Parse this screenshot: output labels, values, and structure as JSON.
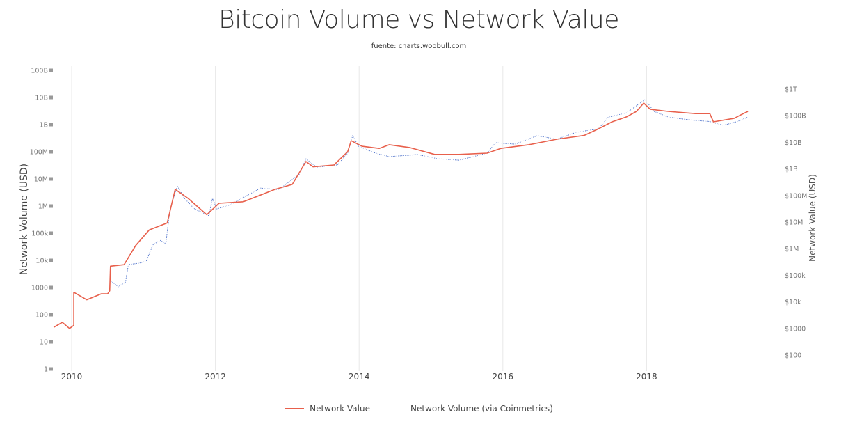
{
  "chart_data": {
    "type": "line",
    "title": "Bitcoin Volume vs Network Value",
    "subtitle": "fuente: charts.woobull.com",
    "xlabel": "",
    "ylabel_left": "Network Volume (USD)",
    "ylabel_right": "Network Value (USD)",
    "x_ticks": [
      "2010",
      "2012",
      "2014",
      "2016",
      "2018"
    ],
    "x_tick_values": [
      2010,
      2012,
      2014,
      2016,
      2018
    ],
    "xlim": [
      2009.75,
      2019.5
    ],
    "y_left": {
      "scale": "log",
      "range": [
        1,
        100000000000
      ],
      "ticks": [
        "1",
        "10",
        "100",
        "1000",
        "10k",
        "100k",
        "1M",
        "10M",
        "100M",
        "1B",
        "10B",
        "100B"
      ],
      "tick_values": [
        1,
        10,
        100,
        1000,
        10000,
        100000,
        1000000,
        10000000,
        100000000,
        1000000000,
        10000000000,
        100000000000
      ]
    },
    "y_right": {
      "scale": "log",
      "range": [
        100,
        1000000000000
      ],
      "ticks": [
        "$100",
        "$1000",
        "$10k",
        "$100k",
        "$1M",
        "$10M",
        "$100M",
        "$1B",
        "$10B",
        "$100B",
        "$1T"
      ],
      "tick_values": [
        100,
        1000,
        10000,
        100000,
        1000000,
        10000000,
        100000000,
        1000000000,
        10000000000,
        100000000000,
        1000000000000
      ]
    },
    "grid": "vertical",
    "legend_position": "bottom-center",
    "series": [
      {
        "name": "Network Value",
        "axis": "right",
        "color": "#e8604c",
        "style": "solid",
        "points": [
          [
            2009.75,
            1100
          ],
          [
            2009.87,
            1700
          ],
          [
            2009.97,
            1000
          ],
          [
            2010.03,
            1300
          ],
          [
            2010.03,
            23000
          ],
          [
            2010.21,
            12000
          ],
          [
            2010.41,
            20000
          ],
          [
            2010.5,
            20000
          ],
          [
            2010.53,
            26000
          ],
          [
            2010.54,
            220000
          ],
          [
            2010.73,
            250000
          ],
          [
            2010.89,
            1300000
          ],
          [
            2011.08,
            5100000
          ],
          [
            2011.33,
            9300000
          ],
          [
            2011.44,
            170000000
          ],
          [
            2011.62,
            78000000
          ],
          [
            2011.88,
            19000000
          ],
          [
            2012.05,
            51000000
          ],
          [
            2012.39,
            58000000
          ],
          [
            2012.83,
            170000000
          ],
          [
            2013.07,
            260000000
          ],
          [
            2013.26,
            1900000000
          ],
          [
            2013.36,
            1200000000
          ],
          [
            2013.65,
            1400000000
          ],
          [
            2013.84,
            4400000000
          ],
          [
            2013.89,
            11500000000
          ],
          [
            2014.04,
            7100000000
          ],
          [
            2014.28,
            5900000000
          ],
          [
            2014.42,
            8100000000
          ],
          [
            2014.71,
            6300000000
          ],
          [
            2015.05,
            3500000000
          ],
          [
            2015.39,
            3500000000
          ],
          [
            2015.78,
            3900000000
          ],
          [
            2015.97,
            5900000000
          ],
          [
            2016.36,
            8100000000
          ],
          [
            2016.75,
            13000000000
          ],
          [
            2017.13,
            18000000000
          ],
          [
            2017.33,
            32000000000
          ],
          [
            2017.52,
            59000000000
          ],
          [
            2017.72,
            90000000000
          ],
          [
            2017.86,
            145000000000
          ],
          [
            2017.96,
            300000000000
          ],
          [
            2018.05,
            175000000000
          ],
          [
            2018.3,
            145000000000
          ],
          [
            2018.68,
            120000000000
          ],
          [
            2018.88,
            120000000000
          ],
          [
            2018.93,
            59000000000
          ],
          [
            2019.22,
            80000000000
          ],
          [
            2019.31,
            107000000000
          ],
          [
            2019.41,
            145000000000
          ]
        ]
      },
      {
        "name": "Network Volume (via Coinmetrics)",
        "axis": "left",
        "color": "#4a6fc9",
        "style": "dotted",
        "points": [
          [
            2010.53,
            1900
          ],
          [
            2010.65,
            1070
          ],
          [
            2010.75,
            1600
          ],
          [
            2010.79,
            7000
          ],
          [
            2010.94,
            7900
          ],
          [
            2011.04,
            9400
          ],
          [
            2011.13,
            37000
          ],
          [
            2011.23,
            55000
          ],
          [
            2011.31,
            41000
          ],
          [
            2011.37,
            790000
          ],
          [
            2011.47,
            5500000
          ],
          [
            2011.57,
            1900000
          ],
          [
            2011.71,
            790000
          ],
          [
            2011.91,
            440000
          ],
          [
            2011.96,
            1900000
          ],
          [
            2012.02,
            790000
          ],
          [
            2012.2,
            1100000
          ],
          [
            2012.63,
            4600000
          ],
          [
            2012.88,
            4000000
          ],
          [
            2013.17,
            15000000
          ],
          [
            2013.26,
            55000000
          ],
          [
            2013.41,
            27000000
          ],
          [
            2013.7,
            33000000
          ],
          [
            2013.84,
            89000000
          ],
          [
            2013.91,
            390000000
          ],
          [
            2013.99,
            160000000
          ],
          [
            2014.23,
            89000000
          ],
          [
            2014.42,
            66000000
          ],
          [
            2014.81,
            79000000
          ],
          [
            2015.1,
            55000000
          ],
          [
            2015.39,
            49000000
          ],
          [
            2015.78,
            89000000
          ],
          [
            2015.9,
            215000000
          ],
          [
            2016.17,
            190000000
          ],
          [
            2016.48,
            390000000
          ],
          [
            2016.75,
            290000000
          ],
          [
            2017.02,
            520000000
          ],
          [
            2017.33,
            700000000
          ],
          [
            2017.47,
            1900000000
          ],
          [
            2017.72,
            2700000000
          ],
          [
            2017.98,
            8400000000
          ],
          [
            2018.1,
            3100000000
          ],
          [
            2018.3,
            1900000000
          ],
          [
            2018.59,
            1500000000
          ],
          [
            2018.88,
            1300000000
          ],
          [
            2019.07,
            940000000
          ],
          [
            2019.26,
            1300000000
          ],
          [
            2019.41,
            1900000000
          ]
        ]
      }
    ]
  }
}
